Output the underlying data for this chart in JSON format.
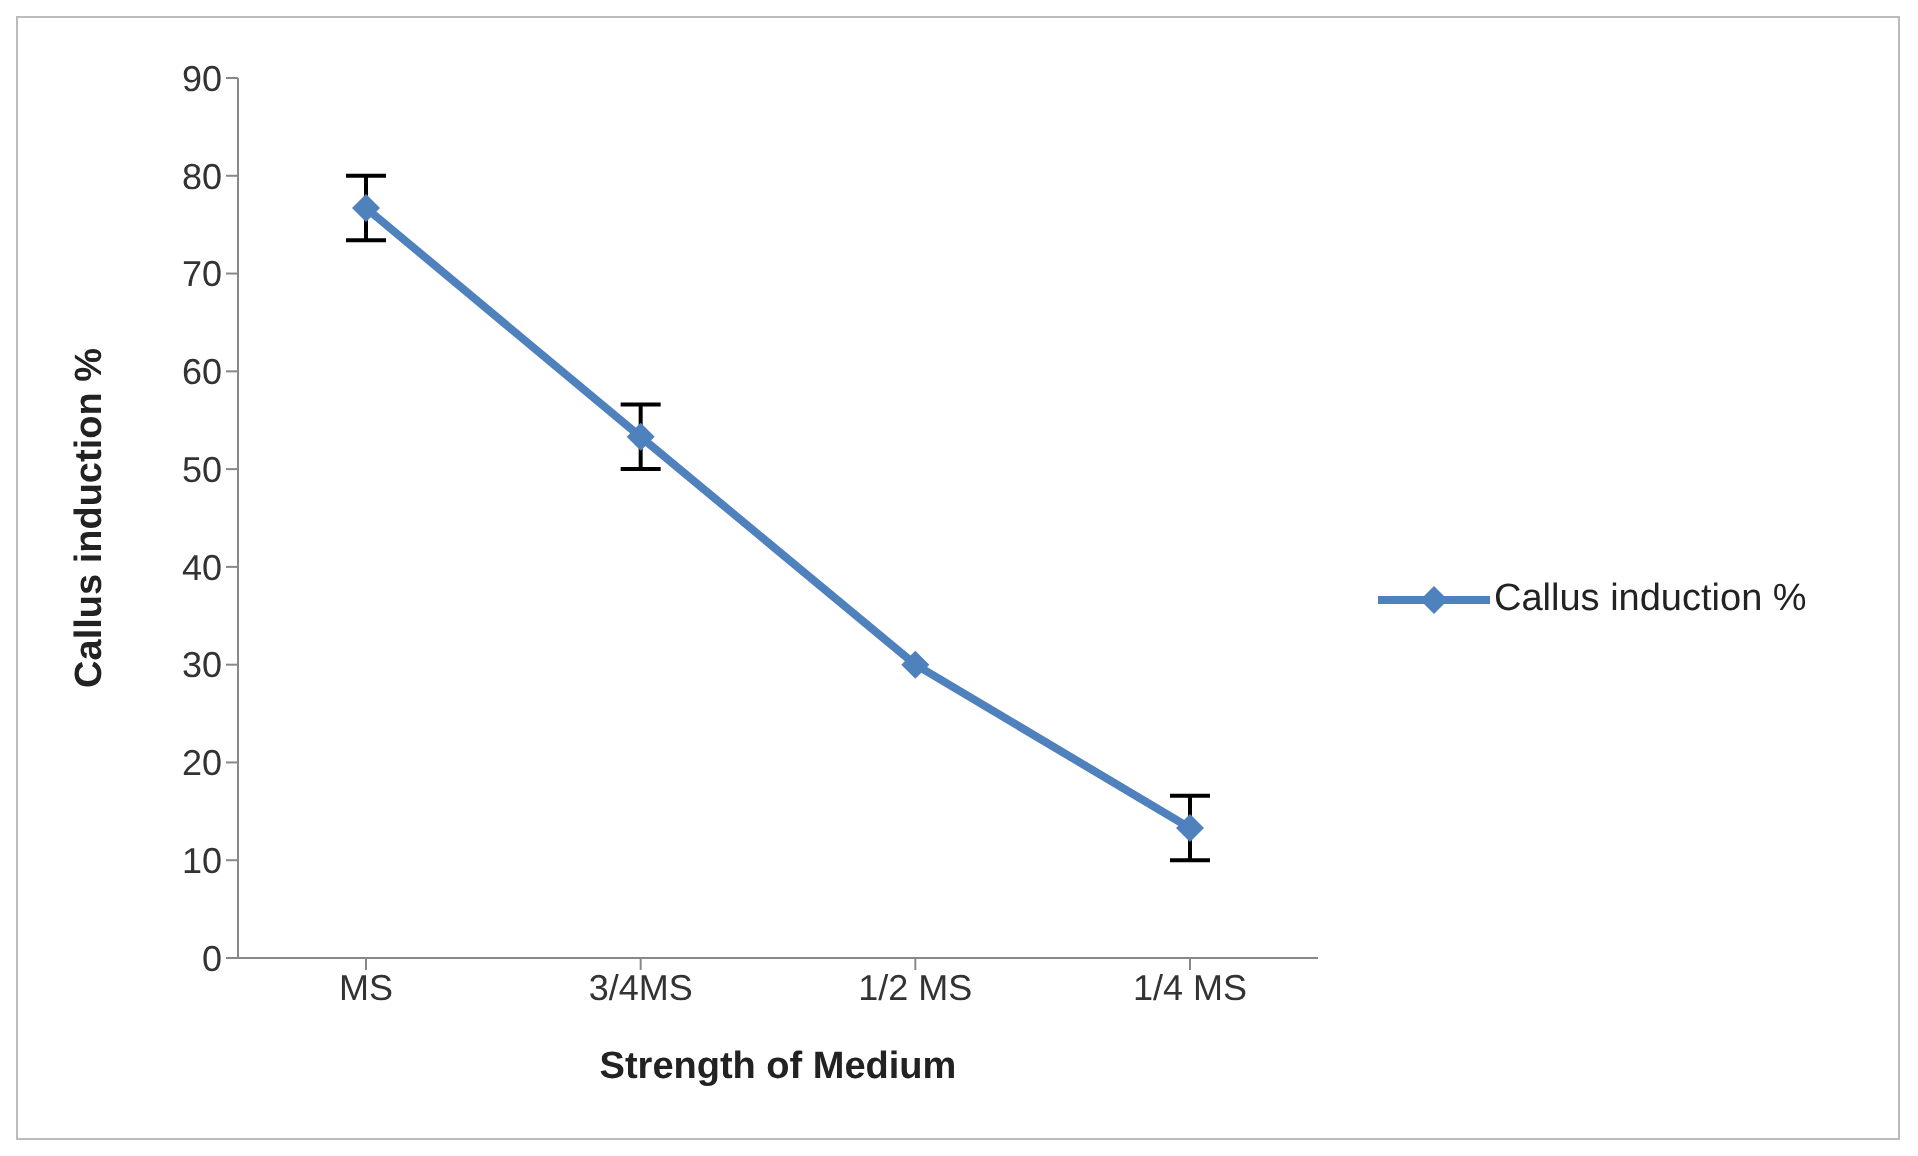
{
  "chart_data": {
    "type": "line",
    "xlabel": "Strength of Medium",
    "ylabel": "Callus induction %",
    "categories": [
      "MS",
      "3/4MS",
      "1/2 MS",
      "1/4 MS"
    ],
    "series": [
      {
        "name": "Callus induction %",
        "color": "#4f81bd",
        "values": [
          76.7,
          53.3,
          30,
          13.3
        ],
        "errors": [
          3.3,
          3.3,
          null,
          3.3
        ]
      }
    ],
    "ylim": [
      0,
      90
    ],
    "yticks": [
      0,
      10,
      20,
      30,
      40,
      50,
      60,
      70,
      80,
      90
    ],
    "grid": false,
    "legend": "right",
    "marker": "diamond",
    "line_style": "solid"
  }
}
